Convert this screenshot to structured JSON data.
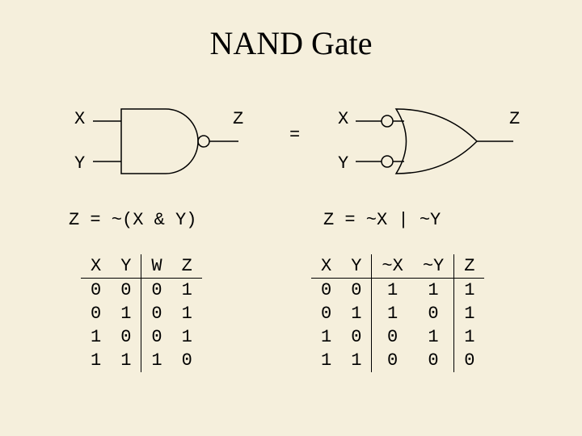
{
  "title": "NAND Gate",
  "background_color": "#f5efdc",
  "stroke_color": "#000000",
  "text_color": "#000000",
  "title_fontsize": 40,
  "label_fontsize": 22,
  "mono_font": "Courier New",
  "left": {
    "labels": {
      "inA": "X",
      "inB": "Y",
      "out": "Z"
    },
    "expression": "Z = ~(X & Y)",
    "gate_type": "nand",
    "table": {
      "columns": [
        "X",
        "Y",
        "W",
        "Z"
      ],
      "vline_after_cols": [
        1
      ],
      "rows": [
        [
          "0",
          "0",
          "0",
          "1"
        ],
        [
          "0",
          "1",
          "0",
          "1"
        ],
        [
          "1",
          "0",
          "0",
          "1"
        ],
        [
          "1",
          "1",
          "1",
          "0"
        ]
      ]
    }
  },
  "equals": "=",
  "right": {
    "labels": {
      "inA": "X",
      "inB": "Y",
      "out": "Z"
    },
    "expression": "Z = ~X | ~Y",
    "gate_type": "or_with_input_bubbles",
    "table": {
      "columns": [
        "X",
        "Y",
        "~X",
        "~Y",
        "Z"
      ],
      "vline_after_cols": [
        1,
        3
      ],
      "rows": [
        [
          "0",
          "0",
          "1",
          "1",
          "1"
        ],
        [
          "0",
          "1",
          "1",
          "0",
          "1"
        ],
        [
          "1",
          "0",
          "0",
          "1",
          "1"
        ],
        [
          "1",
          "1",
          "0",
          "0",
          "0"
        ]
      ]
    }
  }
}
